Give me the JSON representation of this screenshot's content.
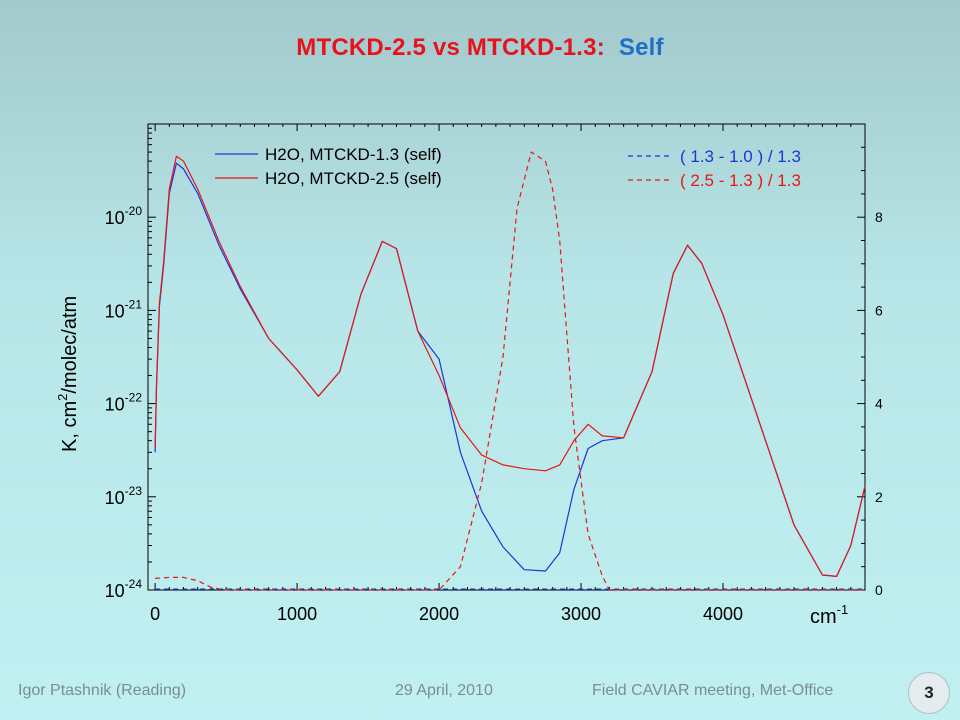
{
  "title": {
    "main": "MTCKD-2.5 vs MTCKD-1.3:",
    "accent": "Self"
  },
  "footer": {
    "author": "Igor Ptashnik (Reading)",
    "date": "29 April, 2010",
    "event": "Field CAVIAR meeting, Met-Office",
    "slide_number": "3"
  },
  "colors": {
    "title_red": "#e8121e",
    "title_blue": "#1f6fc6",
    "series_blue": "#1a37d8",
    "series_red": "#e81616"
  },
  "chart_data": {
    "type": "line",
    "title": "",
    "xlabel": "cm",
    "xlabel_sup": "-1",
    "ylabel": "K,  cm",
    "ylabel_sup": "2",
    "ylabel_tail": "/molec/atm",
    "xlim": [
      -50,
      5000
    ],
    "ylim": [
      1e-24,
      1e-19
    ],
    "yscale": "log",
    "y2lim": [
      0,
      10
    ],
    "x_ticks": [
      0,
      1000,
      2000,
      3000,
      4000
    ],
    "y_ticks": [
      {
        "value": 1e-20,
        "base": "10",
        "exp": "-20"
      },
      {
        "value": 1e-21,
        "base": "10",
        "exp": "-21"
      },
      {
        "value": 1e-22,
        "base": "10",
        "exp": "-22"
      },
      {
        "value": 1e-23,
        "base": "10",
        "exp": "-23"
      },
      {
        "value": 1e-24,
        "base": "10",
        "exp": "-24"
      }
    ],
    "y2_ticks": [
      0,
      2,
      4,
      6,
      8
    ],
    "grid": false,
    "legend_left_position": "top-left",
    "legend_right_position": "top-right",
    "series": [
      {
        "name": "H2O, MTCKD-1.3 (self)",
        "axis": "left",
        "style": "solid",
        "color": "#1a37d8",
        "points": [
          [
            0,
            3e-23
          ],
          [
            10,
            1.5e-22
          ],
          [
            30,
            1.1e-21
          ],
          [
            60,
            3e-21
          ],
          [
            100,
            1.8e-20
          ],
          [
            150,
            3.8e-20
          ],
          [
            200,
            3.3e-20
          ],
          [
            300,
            1.8e-20
          ],
          [
            450,
            5e-21
          ],
          [
            600,
            1.7e-21
          ],
          [
            800,
            5e-22
          ],
          [
            1000,
            2.3e-22
          ],
          [
            1150,
            1.2e-22
          ],
          [
            1300,
            2.2e-22
          ],
          [
            1450,
            1.5e-21
          ],
          [
            1600,
            5.5e-21
          ],
          [
            1700,
            4.6e-21
          ],
          [
            1850,
            6e-22
          ],
          [
            2000,
            3e-22
          ],
          [
            2150,
            3e-23
          ],
          [
            2300,
            7e-24
          ],
          [
            2450,
            2.9e-24
          ],
          [
            2600,
            1.65e-24
          ],
          [
            2750,
            1.6e-24
          ],
          [
            2850,
            2.5e-24
          ],
          [
            2950,
            1.2e-23
          ],
          [
            3050,
            3.3e-23
          ],
          [
            3150,
            4e-23
          ],
          [
            3300,
            4.3e-23
          ],
          [
            3500,
            2.2e-22
          ],
          [
            3650,
            2.5e-21
          ],
          [
            3750,
            5e-21
          ],
          [
            3850,
            3.2e-21
          ],
          [
            4000,
            9e-22
          ],
          [
            4300,
            4e-23
          ],
          [
            4500,
            5e-24
          ],
          [
            4700,
            1.45e-24
          ],
          [
            4800,
            1.4e-24
          ],
          [
            4900,
            3e-24
          ],
          [
            5000,
            1.3e-23
          ]
        ]
      },
      {
        "name": "H2O, MTCKD-2.5 (self)",
        "axis": "left",
        "style": "solid",
        "color": "#e81616",
        "points": [
          [
            0,
            3.4e-23
          ],
          [
            10,
            1.6e-22
          ],
          [
            30,
            1.2e-21
          ],
          [
            60,
            3.3e-21
          ],
          [
            100,
            2e-20
          ],
          [
            150,
            4.5e-20
          ],
          [
            200,
            4e-20
          ],
          [
            300,
            2e-20
          ],
          [
            450,
            5.5e-21
          ],
          [
            600,
            1.8e-21
          ],
          [
            800,
            5e-22
          ],
          [
            1000,
            2.3e-22
          ],
          [
            1150,
            1.2e-22
          ],
          [
            1300,
            2.2e-22
          ],
          [
            1450,
            1.5e-21
          ],
          [
            1600,
            5.5e-21
          ],
          [
            1700,
            4.6e-21
          ],
          [
            1850,
            6e-22
          ],
          [
            2000,
            2e-22
          ],
          [
            2150,
            5.5e-23
          ],
          [
            2300,
            2.8e-23
          ],
          [
            2450,
            2.2e-23
          ],
          [
            2600,
            2e-23
          ],
          [
            2750,
            1.9e-23
          ],
          [
            2850,
            2.2e-23
          ],
          [
            2950,
            4e-23
          ],
          [
            3050,
            6e-23
          ],
          [
            3150,
            4.5e-23
          ],
          [
            3300,
            4.3e-23
          ],
          [
            3500,
            2.2e-22
          ],
          [
            3650,
            2.5e-21
          ],
          [
            3750,
            5e-21
          ],
          [
            3850,
            3.2e-21
          ],
          [
            4000,
            9e-22
          ],
          [
            4300,
            4e-23
          ],
          [
            4500,
            5e-24
          ],
          [
            4700,
            1.45e-24
          ],
          [
            4800,
            1.4e-24
          ],
          [
            4900,
            3e-24
          ],
          [
            5000,
            1.3e-23
          ]
        ]
      },
      {
        "name": "( 1.3 - 1.0 ) / 1.3",
        "axis": "right",
        "style": "dashed",
        "color": "#1a37d8",
        "points": [
          [
            0,
            0.02
          ],
          [
            1000,
            0.02
          ],
          [
            2000,
            0.02
          ],
          [
            3000,
            0.02
          ],
          [
            4000,
            0.02
          ],
          [
            5000,
            0.02
          ]
        ]
      },
      {
        "name": "( 2.5 - 1.3 ) / 1.3",
        "axis": "right",
        "style": "dashed",
        "color": "#e81616",
        "points": [
          [
            0,
            0.25
          ],
          [
            100,
            0.27
          ],
          [
            200,
            0.27
          ],
          [
            300,
            0.2
          ],
          [
            400,
            0.05
          ],
          [
            500,
            0.0
          ],
          [
            1000,
            0.0
          ],
          [
            2000,
            0.0
          ],
          [
            2150,
            0.5
          ],
          [
            2300,
            2.3
          ],
          [
            2450,
            5.0
          ],
          [
            2550,
            8.2
          ],
          [
            2650,
            9.4
          ],
          [
            2750,
            9.2
          ],
          [
            2800,
            8.6
          ],
          [
            2850,
            7.5
          ],
          [
            2950,
            3.5
          ],
          [
            3050,
            1.2
          ],
          [
            3150,
            0.3
          ],
          [
            3200,
            0.0
          ],
          [
            4000,
            0.0
          ],
          [
            5000,
            0.0
          ]
        ]
      }
    ]
  }
}
